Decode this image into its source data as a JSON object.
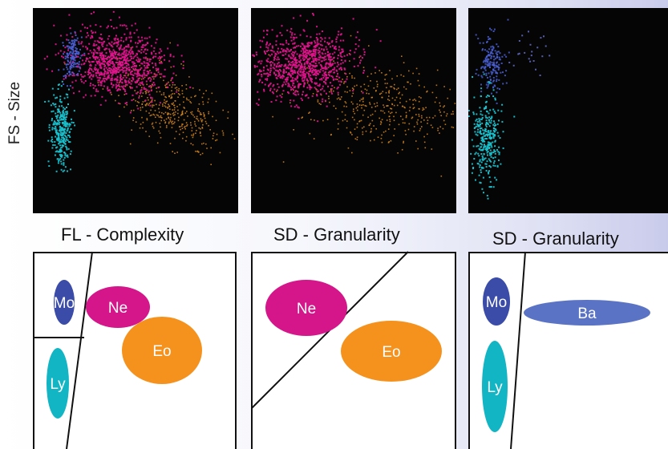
{
  "y_axis_label": "FS - Size",
  "panels": [
    {
      "x_label": "FL - Complexity",
      "gates": [
        {
          "label": "Mo",
          "color": "#3a4ba8"
        },
        {
          "label": "Ne",
          "color": "#d4168a"
        },
        {
          "label": "Eo",
          "color": "#f5921e"
        },
        {
          "label": "Ly",
          "color": "#12b5c4"
        }
      ]
    },
    {
      "x_label": "SD - Granularity",
      "gates": [
        {
          "label": "Ne",
          "color": "#d4168a"
        },
        {
          "label": "Eo",
          "color": "#f5921e"
        }
      ]
    },
    {
      "x_label": "SD - Granularity",
      "gates": [
        {
          "label": "Mo",
          "color": "#3a4ba8"
        },
        {
          "label": "Ba",
          "color": "#5a73c4"
        },
        {
          "label": "Ly",
          "color": "#12b5c4"
        }
      ]
    }
  ],
  "population_colors": {
    "Mo": "#4a5fd4",
    "Ne": "#e0148c",
    "Eo": "#d98a1e",
    "Ly": "#19c2cf",
    "Ba": "#6a74d6"
  }
}
